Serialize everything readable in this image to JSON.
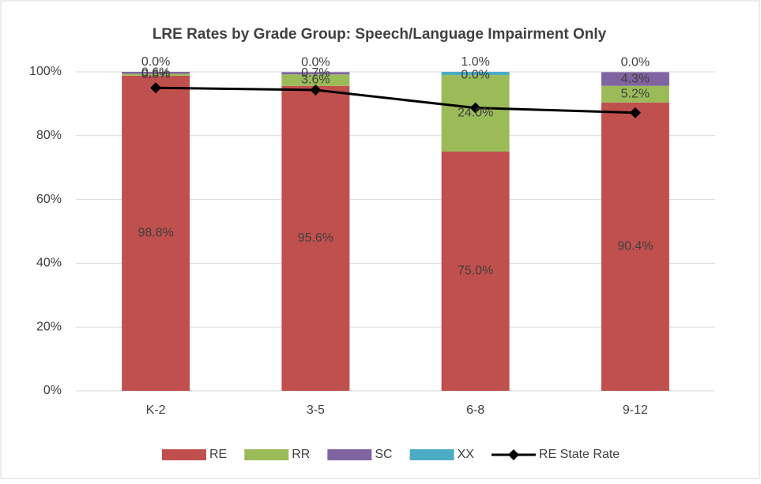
{
  "chart_data": {
    "type": "stacked_bar",
    "title": "LRE Rates by Grade Group: Speech/Language Impairment Only",
    "categories": [
      "K-2",
      "3-5",
      "6-8",
      "9-12"
    ],
    "series": [
      {
        "name": "RE",
        "color": "#c0504d",
        "values": [
          98.8,
          95.6,
          75.0,
          90.4
        ],
        "value_labels": [
          "98.8%",
          "95.6%",
          "75.0%",
          "90.4%"
        ]
      },
      {
        "name": "RR",
        "color": "#9bbb59",
        "values": [
          0.6,
          3.6,
          24.0,
          5.2
        ],
        "value_labels": [
          "0.6%",
          "3.6%",
          "24.0%",
          "5.2%"
        ]
      },
      {
        "name": "SC",
        "color": "#8064a2",
        "values": [
          0.6,
          0.7,
          0.0,
          4.3
        ],
        "value_labels": [
          "0.6%",
          "0.7%",
          "0.0%",
          "4.3%"
        ]
      },
      {
        "name": "XX",
        "color": "#4bacc6",
        "values": [
          0.0,
          0.0,
          1.0,
          0.0
        ],
        "value_labels": [
          "0.0%",
          "0.0%",
          "1.0%",
          "0.0%"
        ]
      },
      {
        "name": "RE State Rate",
        "type": "line",
        "marker": "diamond",
        "color": "#000000",
        "values": [
          95.0,
          94.3,
          88.7,
          87.2
        ]
      }
    ],
    "ylim": [
      0,
      100
    ],
    "yticks": [
      {
        "value": 0,
        "label": "0%"
      },
      {
        "value": 20,
        "label": "20%"
      },
      {
        "value": 40,
        "label": "40%"
      },
      {
        "value": 60,
        "label": "60%"
      },
      {
        "value": 80,
        "label": "80%"
      },
      {
        "value": 100,
        "label": "100%"
      }
    ],
    "grid": true,
    "legend": "bottom"
  }
}
